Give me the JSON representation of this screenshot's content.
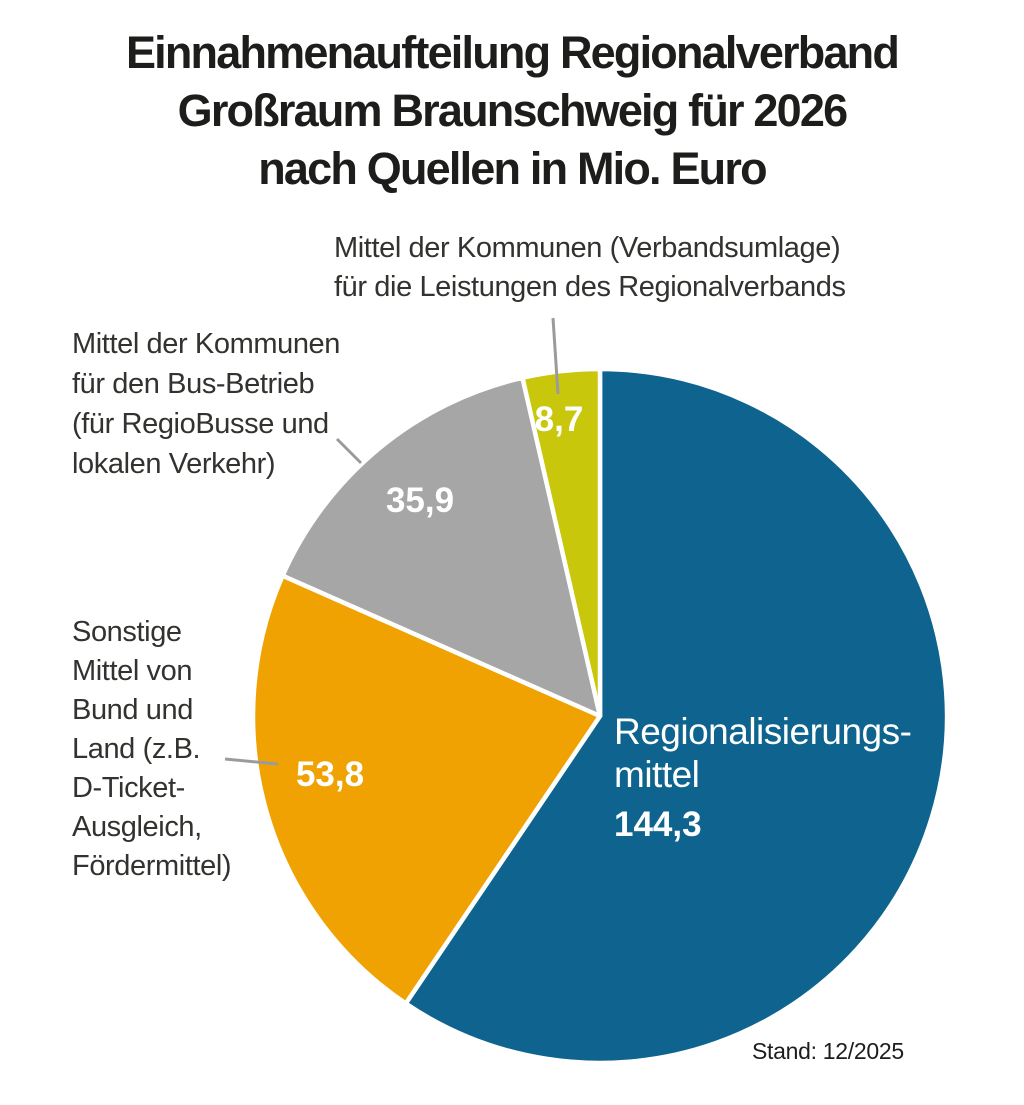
{
  "title": {
    "lines": [
      "Einnahmenaufteilung Regionalverband",
      "Großraum Braunschweig für 2026",
      "nach Quellen in Mio. Euro"
    ]
  },
  "annotations": {
    "verbandsumlage": {
      "lines": [
        "Mittel der Kommunen (Verbandsumlage)",
        "für die Leistungen des Regionalverbands"
      ]
    },
    "bus": {
      "lines": [
        "Mittel der Kommunen",
        "für den Bus-Betrieb",
        "(für RegioBusse und",
        "lokalen Verkehr)"
      ]
    },
    "sonstige": {
      "lines": [
        "Sonstige",
        "Mittel von",
        "Bund und",
        "Land (z.B.",
        "D-Ticket-",
        "Ausgleich,",
        "Fördermittel)"
      ]
    }
  },
  "footer": {
    "stand": "Stand: 12/2025"
  },
  "chart_data": {
    "type": "pie",
    "title": "Einnahmenaufteilung Regionalverband Großraum Braunschweig für 2026 nach Quellen in Mio. Euro",
    "unit": "Mio. Euro",
    "total": 242.7,
    "start_angle_deg": 0,
    "direction": "clockwise",
    "legend_position": "labels-around-pie",
    "segments": [
      {
        "name": "Regionalisierungsmittel",
        "value": 144.3,
        "value_label": "144,3",
        "display_lines": [
          "Regionalisierungs-",
          "mittel"
        ],
        "color": "#0E648E"
      },
      {
        "name": "Sonstige Mittel von Bund und Land (z.B. D-Ticket-Ausgleich, Fördermittel)",
        "value": 53.8,
        "value_label": "53,8",
        "color": "#F0A202"
      },
      {
        "name": "Mittel der Kommunen für den Bus-Betrieb (für RegioBusse und lokalen Verkehr)",
        "value": 35.9,
        "value_label": "35,9",
        "color": "#A6A6A6"
      },
      {
        "name": "Mittel der Kommunen (Verbandsumlage) für die Leistungen des Regionalverbands",
        "value": 8.7,
        "value_label": "8,7",
        "color": "#C8C70B"
      }
    ]
  }
}
